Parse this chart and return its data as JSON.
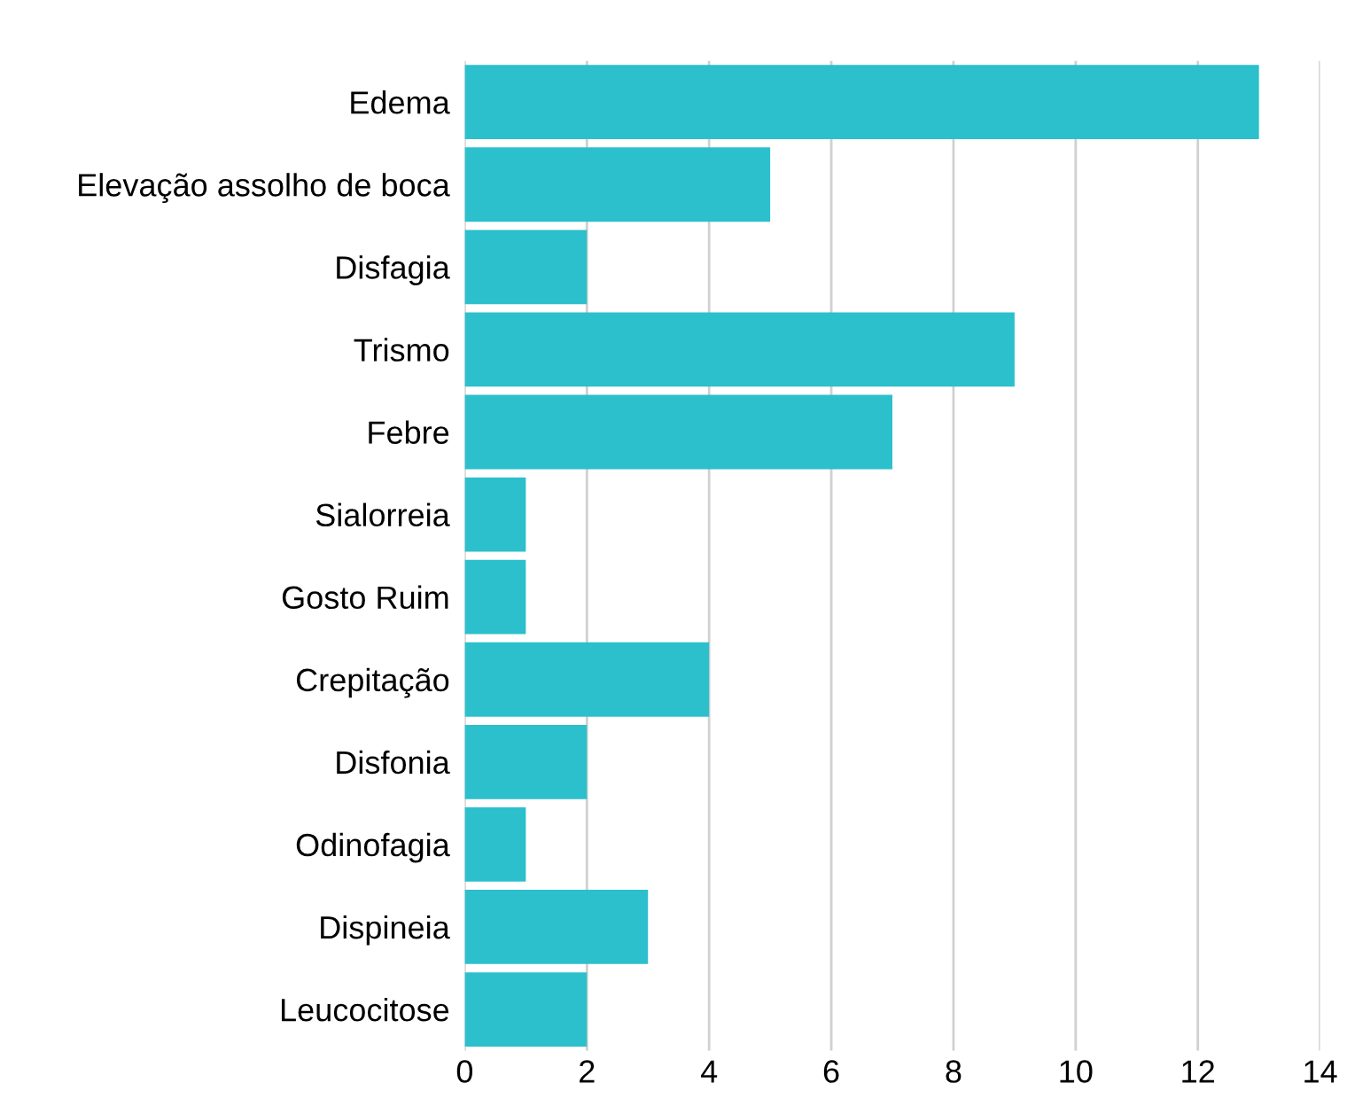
{
  "chart_data": {
    "type": "bar",
    "orientation": "horizontal",
    "categories": [
      "Edema",
      "Elevação assolho de boca",
      "Disfagia",
      "Trismo",
      "Febre",
      "Sialorreia",
      "Gosto Ruim",
      "Crepitação",
      "Disfonia",
      "Odinofagia",
      "Dispineia",
      "Leucocitose"
    ],
    "values": [
      13,
      5,
      2,
      9,
      7,
      1,
      1,
      4,
      2,
      1,
      3,
      2
    ],
    "color": "#2cbfcc",
    "xlim": [
      0,
      14
    ],
    "xticks": [
      0,
      2,
      4,
      6,
      8,
      10,
      12,
      14
    ],
    "grid": "x",
    "legend": false
  }
}
